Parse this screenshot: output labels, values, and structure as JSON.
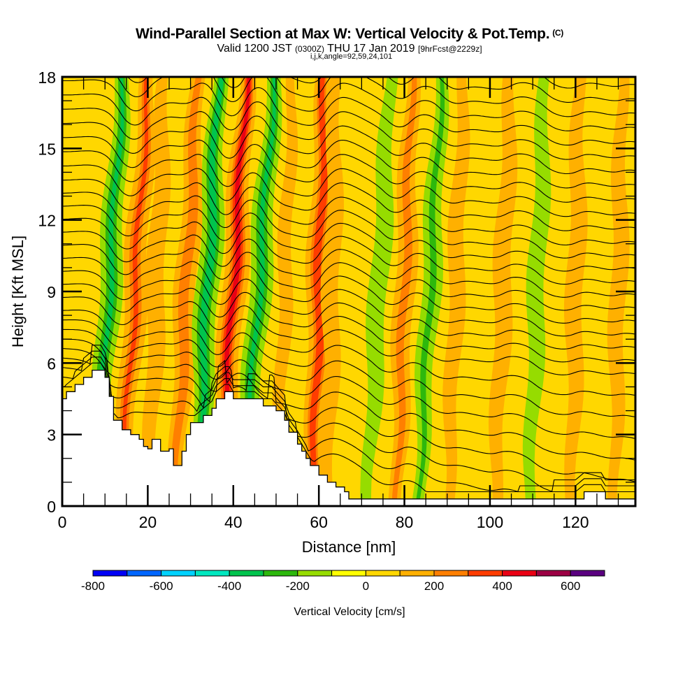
{
  "header": {
    "title": "Wind-Parallel Section at Max W: Vertical Velocity & Pot.Temp.",
    "copyright_mark": "(C)",
    "valid_prefix": "Valid 1200 JST",
    "valid_utc": "(0300Z)",
    "valid_date": "THU 17 Jan 2019",
    "forecast_info": "[9hrFcst@2229z]",
    "grid_info": "i,j,k,angle=92,59,24,101"
  },
  "chart_data": {
    "type": "heatmap",
    "title": "Wind-Parallel Section at Max W: Vertical Velocity & Pot.Temp.",
    "xlabel": "Distance [nm]",
    "ylabel": "Height [Kft MSL]",
    "xlim": [
      0,
      134
    ],
    "ylim": [
      0,
      18
    ],
    "x_ticks": [
      0,
      20,
      40,
      60,
      80,
      100,
      120
    ],
    "x_tick_labels": [
      "0",
      "20",
      "40",
      "60",
      "80",
      "100",
      "120"
    ],
    "y_ticks": [
      0,
      3,
      6,
      9,
      12,
      15,
      18
    ],
    "y_tick_labels": [
      "0",
      "3",
      "6",
      "9",
      "12",
      "15",
      "18"
    ],
    "x_minor_step": 5,
    "y_minor_step": 1,
    "colorbar": {
      "title": "Vertical Velocity [cm/s]",
      "boundaries": [
        -800,
        -700,
        -600,
        -500,
        -400,
        -300,
        -200,
        -100,
        0,
        100,
        200,
        300,
        400,
        500,
        600,
        700
      ],
      "tick_labels": [
        "-800",
        "-600",
        "-400",
        "-200",
        "0",
        "200",
        "400",
        "600"
      ],
      "tick_values": [
        -800,
        -600,
        -400,
        -200,
        0,
        200,
        400,
        600
      ],
      "colors": [
        "#0000f5",
        "#0066ff",
        "#00d2ff",
        "#00e8c0",
        "#00c44d",
        "#2db80d",
        "#96dc00",
        "#ffff00",
        "#ffd700",
        "#ffb000",
        "#ff7f00",
        "#ff3c00",
        "#ea0014",
        "#9c0044",
        "#5a0080"
      ]
    },
    "velocity_bands": [
      {
        "center_nm": 11,
        "tilt": 0.35,
        "value": -250
      },
      {
        "center_nm": 17,
        "tilt": 0.35,
        "value": 250
      },
      {
        "center_nm": 22,
        "tilt": 0.2,
        "value": 120
      },
      {
        "center_nm": 29,
        "tilt": 0.3,
        "value": 220
      },
      {
        "center_nm": 34,
        "tilt": 0.3,
        "value": -300
      },
      {
        "center_nm": 40,
        "tilt": 0.35,
        "value": 380
      },
      {
        "center_nm": 46,
        "tilt": 0.4,
        "value": -250
      },
      {
        "center_nm": 52,
        "tilt": 0.2,
        "value": 60
      },
      {
        "center_nm": 60,
        "tilt": 0.15,
        "value": 320
      },
      {
        "center_nm": 63,
        "tilt": 0.1,
        "value": 110
      },
      {
        "center_nm": 74,
        "tilt": 0.3,
        "value": -130
      },
      {
        "center_nm": 80,
        "tilt": 0.2,
        "value": 180
      },
      {
        "center_nm": 86,
        "tilt": 0.3,
        "value": -150
      },
      {
        "center_nm": 92,
        "tilt": 0.2,
        "value": 90
      },
      {
        "center_nm": 103,
        "tilt": 0.2,
        "value": 120
      },
      {
        "center_nm": 111,
        "tilt": 0.2,
        "value": -110
      },
      {
        "center_nm": 120,
        "tilt": 0.1,
        "value": 110
      },
      {
        "center_nm": 130,
        "tilt": 0.1,
        "value": 90
      }
    ],
    "terrain_kft": {
      "x": [
        0,
        1,
        3,
        5,
        7,
        8,
        9,
        10,
        11,
        12,
        14,
        16,
        18,
        19,
        20,
        21,
        22,
        23,
        25,
        26,
        27,
        28,
        29,
        30,
        31,
        33,
        35,
        36,
        38,
        39,
        40,
        41,
        43,
        45,
        47,
        49,
        50,
        52,
        53,
        55,
        56,
        57,
        58,
        60,
        62,
        64,
        66,
        67,
        68,
        70,
        72,
        80,
        85,
        90,
        100,
        110,
        120,
        122,
        123,
        126,
        127,
        134
      ],
      "y": [
        4.5,
        4.8,
        5.1,
        5.4,
        5.7,
        5.7,
        5.7,
        5.4,
        4.6,
        3.6,
        3.2,
        3.0,
        2.8,
        2.5,
        2.4,
        2.8,
        2.8,
        2.3,
        2.4,
        1.7,
        1.7,
        2.3,
        3.0,
        3.5,
        3.5,
        3.8,
        4.1,
        4.5,
        4.8,
        4.8,
        4.5,
        4.5,
        4.5,
        4.5,
        4.2,
        4.2,
        4.0,
        3.6,
        3.1,
        2.6,
        2.3,
        2.0,
        1.7,
        1.3,
        1.0,
        0.8,
        0.6,
        0.3,
        0.3,
        0.3,
        0.3,
        0.3,
        0.3,
        0.3,
        0.3,
        0.3,
        0.3,
        0.6,
        0.6,
        0.6,
        0.3,
        0.3
      ]
    },
    "potential_temperature_contours": {
      "count": 30,
      "label_interval_K": 2,
      "description": "isentropes with tilted lee-wave undulations"
    }
  }
}
